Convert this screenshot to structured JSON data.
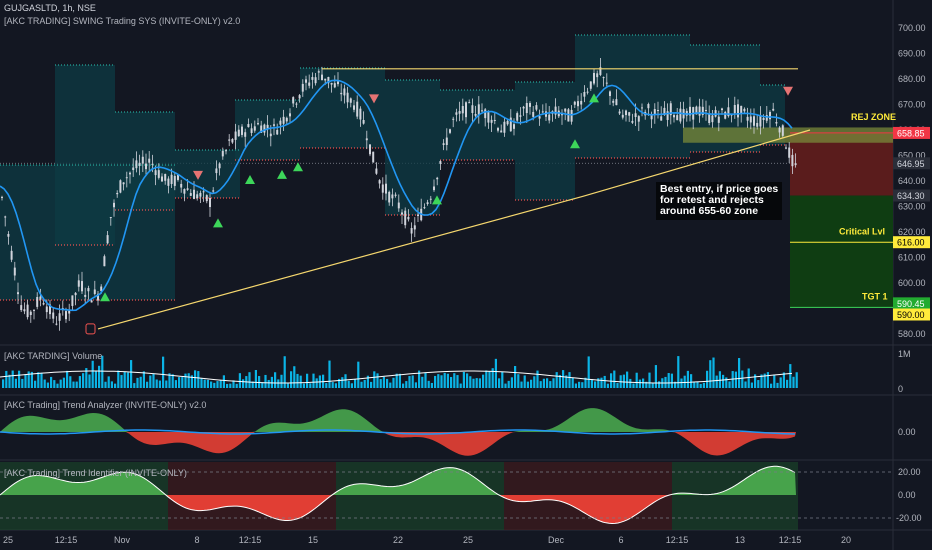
{
  "header": {
    "symbol": "GUJGASLTD, 1h, NSE",
    "indicator_main": "[AKC TRADING] SWING Trading SYS (INVITE-ONLY) v2.0",
    "indicator_volume": "[AKC TARDING] Volume",
    "indicator_trend_analyzer": "[AKC Trading] Trend Analyzer (INVITE-ONLY) v2.0",
    "indicator_trend_identifier": "[AKC Trading] Trend Identifier (INVITE-ONLY)"
  },
  "annotation": {
    "line1": "Best entry, if price goes",
    "line2": "for retest and rejects",
    "line3": "around 655-60 zone"
  },
  "zone_labels": {
    "rej_zone": "REJ ZONE",
    "critical": "Critical Lvl",
    "target": "TGT 1"
  },
  "colors": {
    "background": "#131722",
    "bull": "#26a69a",
    "bear": "#ef5350",
    "trendline": "#f5d76e",
    "zone_band": "#0e3b44",
    "volume": "#0bb4e6",
    "ma": "#2196f3",
    "rej_zone": "#7a8a3a",
    "short_zone": "#5a1c1c",
    "target_zone": "#0f3d12",
    "label_red": "#f23645",
    "label_yellow": "#ffeb3b",
    "label_green": "#22ab30",
    "label_grey": "#2a2e39"
  },
  "chart_data": [
    {
      "type": "candlestick",
      "title": "GUJGASLTD, 1h, NSE",
      "x_ticks": [
        "25",
        "12:15",
        "Nov",
        "8",
        "12:15",
        "15",
        "22",
        "25",
        "Dec",
        "6",
        "12:15",
        "13",
        "12:15",
        "20"
      ],
      "y_ticks": [
        580,
        590,
        600,
        610,
        620,
        630,
        640,
        650,
        660,
        670,
        680,
        690,
        700
      ],
      "ylim": [
        576,
        704
      ],
      "close_path": [
        [
          0,
          638
        ],
        [
          10,
          615
        ],
        [
          22,
          590
        ],
        [
          30,
          588
        ],
        [
          42,
          595
        ],
        [
          55,
          585
        ],
        [
          70,
          590
        ],
        [
          80,
          600
        ],
        [
          90,
          595
        ],
        [
          100,
          596
        ],
        [
          110,
          625
        ],
        [
          122,
          640
        ],
        [
          135,
          645
        ],
        [
          150,
          648
        ],
        [
          165,
          640
        ],
        [
          178,
          640
        ],
        [
          190,
          636
        ],
        [
          200,
          634
        ],
        [
          210,
          632
        ],
        [
          218,
          645
        ],
        [
          230,
          655
        ],
        [
          245,
          660
        ],
        [
          260,
          662
        ],
        [
          275,
          660
        ],
        [
          290,
          668
        ],
        [
          300,
          675
        ],
        [
          312,
          680
        ],
        [
          322,
          682
        ],
        [
          332,
          678
        ],
        [
          342,
          675
        ],
        [
          355,
          670
        ],
        [
          365,
          662
        ],
        [
          372,
          650
        ],
        [
          380,
          640
        ],
        [
          388,
          635
        ],
        [
          400,
          630
        ],
        [
          412,
          620
        ],
        [
          422,
          628
        ],
        [
          432,
          636
        ],
        [
          442,
          650
        ],
        [
          452,
          663
        ],
        [
          465,
          668
        ],
        [
          480,
          668
        ],
        [
          492,
          665
        ],
        [
          502,
          660
        ],
        [
          515,
          663
        ],
        [
          525,
          668
        ],
        [
          535,
          668
        ],
        [
          545,
          665
        ],
        [
          558,
          667
        ],
        [
          570,
          665
        ],
        [
          580,
          672
        ],
        [
          590,
          678
        ],
        [
          600,
          682
        ],
        [
          610,
          675
        ],
        [
          622,
          665
        ],
        [
          635,
          665
        ],
        [
          648,
          668
        ],
        [
          660,
          665
        ],
        [
          672,
          668
        ],
        [
          685,
          665
        ],
        [
          698,
          668
        ],
        [
          710,
          665
        ],
        [
          722,
          666
        ],
        [
          735,
          668
        ],
        [
          748,
          665
        ],
        [
          760,
          663
        ],
        [
          772,
          668
        ],
        [
          782,
          660
        ],
        [
          790,
          650
        ],
        [
          795,
          645
        ]
      ],
      "markers": [
        {
          "type": "buy",
          "x": 105,
          "price": 594
        },
        {
          "type": "buy",
          "x": 218,
          "price": 623
        },
        {
          "type": "buy",
          "x": 250,
          "price": 640
        },
        {
          "type": "buy",
          "x": 282,
          "price": 642
        },
        {
          "type": "buy",
          "x": 298,
          "price": 645
        },
        {
          "type": "buy",
          "x": 437,
          "price": 632
        },
        {
          "type": "buy",
          "x": 575,
          "price": 654
        },
        {
          "type": "buy",
          "x": 594,
          "price": 672
        },
        {
          "type": "sell",
          "x": 198,
          "price": 642
        },
        {
          "type": "sell",
          "x": 374,
          "price": 672
        },
        {
          "type": "sell",
          "x": 788,
          "price": 675
        },
        {
          "type": "flag",
          "x": 90,
          "price": 582
        }
      ],
      "support_line": [
        [
          98,
          582
        ],
        [
          583,
          634
        ],
        [
          810,
          660
        ]
      ],
      "resistance_line": [
        [
          322,
          684
        ],
        [
          798,
          684
        ]
      ],
      "zones": [
        {
          "name": "rej",
          "from": 655,
          "to": 661
        },
        {
          "name": "short",
          "from": 634.3,
          "to": 658.85
        },
        {
          "name": "target",
          "from": 590.45,
          "to": 634.3
        }
      ],
      "price_labels": [
        {
          "value": "658.85",
          "price": 658.85,
          "kind": "red"
        },
        {
          "value": "646.95",
          "price": 646.95,
          "kind": "grey"
        },
        {
          "value": "634.30",
          "price": 634.3,
          "kind": "grey"
        },
        {
          "value": "616.00",
          "price": 616,
          "kind": "yellow"
        },
        {
          "value": "590.45",
          "price": 590.45,
          "kind": "green"
        },
        {
          "value": "590.00",
          "price": 590,
          "kind": "yellow"
        }
      ],
      "critical_level": 616,
      "last_price": 646.95
    },
    {
      "type": "bar",
      "title": "[AKC TARDING] Volume",
      "y_ticks": [
        "1M",
        "0"
      ]
    },
    {
      "type": "area",
      "title": "[AKC Trading] Trend Analyzer (INVITE-ONLY) v2.0",
      "y_ticks": [
        "0.00"
      ]
    },
    {
      "type": "area",
      "title": "[AKC Trading] Trend Identifier (INVITE-ONLY)",
      "y_ticks": [
        "20.00",
        "0.00",
        "-20.00"
      ],
      "ylim": [
        -25,
        25
      ]
    }
  ]
}
